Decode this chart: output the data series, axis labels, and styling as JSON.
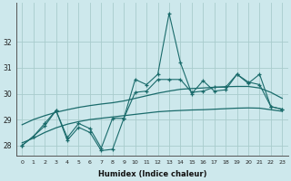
{
  "title": "",
  "xlabel": "Humidex (Indice chaleur)",
  "ylabel": "",
  "background_color": "#cde8ec",
  "grid_color": "#a8cccc",
  "line_color": "#1a6b6b",
  "x_values": [
    0,
    1,
    2,
    3,
    4,
    5,
    6,
    7,
    8,
    9,
    10,
    11,
    12,
    13,
    14,
    15,
    16,
    17,
    18,
    19,
    20,
    21,
    22,
    23
  ],
  "series1": [
    28.0,
    28.35,
    28.75,
    29.35,
    28.2,
    28.7,
    28.5,
    27.8,
    27.85,
    29.05,
    30.55,
    30.35,
    30.75,
    33.1,
    31.2,
    30.0,
    30.5,
    30.1,
    30.15,
    30.75,
    30.4,
    30.75,
    29.5,
    29.4
  ],
  "series2": [
    28.0,
    28.35,
    28.85,
    29.35,
    28.3,
    28.85,
    28.65,
    27.9,
    29.05,
    29.05,
    30.05,
    30.1,
    30.55,
    30.55,
    30.55,
    30.05,
    30.1,
    30.25,
    30.25,
    30.75,
    30.45,
    30.35,
    29.5,
    29.4
  ],
  "series3_smooth": [
    28.8,
    29.0,
    29.15,
    29.28,
    29.38,
    29.47,
    29.54,
    29.6,
    29.65,
    29.72,
    29.82,
    29.92,
    30.02,
    30.1,
    30.17,
    30.2,
    30.22,
    30.25,
    30.27,
    30.28,
    30.28,
    30.22,
    30.05,
    29.82
  ],
  "series4_smooth": [
    28.1,
    28.28,
    28.5,
    28.68,
    28.82,
    28.92,
    29.0,
    29.05,
    29.1,
    29.15,
    29.2,
    29.25,
    29.3,
    29.33,
    29.35,
    29.37,
    29.38,
    29.4,
    29.42,
    29.44,
    29.45,
    29.44,
    29.38,
    29.32
  ],
  "ylim": [
    27.6,
    33.5
  ],
  "yticks": [
    28,
    29,
    30,
    31,
    32
  ],
  "xticks": [
    0,
    1,
    2,
    3,
    4,
    5,
    6,
    7,
    8,
    9,
    10,
    11,
    12,
    13,
    14,
    15,
    16,
    17,
    18,
    19,
    20,
    21,
    22,
    23
  ]
}
